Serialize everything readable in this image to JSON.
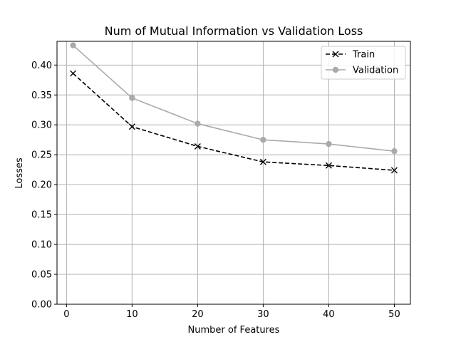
{
  "chart_data": {
    "type": "line",
    "title": "Num of Mutual Information vs Validation Loss",
    "xlabel": "Number of Features",
    "ylabel": "Losses",
    "x": [
      1,
      10,
      20,
      30,
      40,
      50
    ],
    "xlim": [
      -1.45,
      52.45
    ],
    "ylim": [
      0,
      0.4397
    ],
    "xticks": [
      0,
      10,
      20,
      30,
      40,
      50
    ],
    "yticks": [
      0.0,
      0.05,
      0.1,
      0.15,
      0.2,
      0.25,
      0.3,
      0.35,
      0.4
    ],
    "ytick_labels": [
      "0.00",
      "0.05",
      "0.10",
      "0.15",
      "0.20",
      "0.25",
      "0.30",
      "0.35",
      "0.40"
    ],
    "grid": true,
    "legend_position": "top-right",
    "series": [
      {
        "name": "Train",
        "values": [
          0.386,
          0.297,
          0.264,
          0.238,
          0.232,
          0.224
        ],
        "color": "#000000",
        "line_style": "dashed",
        "marker": "x"
      },
      {
        "name": "Validation",
        "values": [
          0.433,
          0.345,
          0.302,
          0.275,
          0.268,
          0.256
        ],
        "color": "#aaaaaa",
        "line_style": "solid",
        "marker": "circle"
      }
    ]
  }
}
